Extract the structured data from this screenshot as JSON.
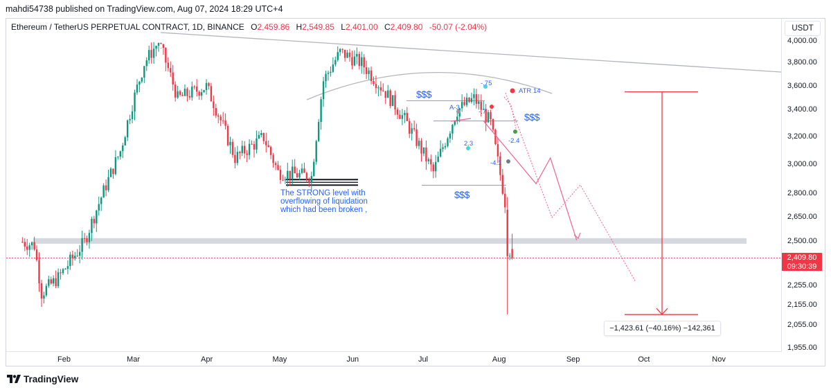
{
  "header": {
    "published_line": "mahdi54738 published on TradingView.com, Aug 07, 2024 18:29 UTC+4"
  },
  "legend": {
    "symbol": "Ethereum / TetherUS PERPETUAL CONTRACT, 1D, BINANCE",
    "open_label": "O",
    "open": "2,459.86",
    "high_label": "H",
    "high": "2,549.85",
    "low_label": "L",
    "low": "2,401.00",
    "close_label": "C",
    "close": "2,409.80",
    "change": "-50.07 (-2.04%)"
  },
  "currency_button": "USDT",
  "price_axis": [
    "4,000.00",
    "3,800.00",
    "3,600.00",
    "3,400.00",
    "3,200.00",
    "3,000.00",
    "2,800.00",
    "2,650.00",
    "2,500.00",
    "2,255.00",
    "2,155.00",
    "2,055.00",
    "1,955.00"
  ],
  "time_axis": [
    "Feb",
    "Mar",
    "Apr",
    "May",
    "Jun",
    "Jul",
    "Aug",
    "Sep",
    "Oct",
    "Nov"
  ],
  "current_price": {
    "price": "2,409.80",
    "countdown": "09:30:39"
  },
  "measurement": "−1,423.61 (−40.16%) −142,361",
  "annotations": {
    "strong_level_note": [
      "The STRONG level with",
      "overflowing of liquidation",
      "which had been broken ,"
    ],
    "dollar_signs": [
      "$$$",
      "$$$",
      "$$$"
    ],
    "atr_label": "ATR 14",
    "tags": [
      "-.75",
      "A-3",
      "-.7",
      "2.3",
      "-2.4",
      "-4.1"
    ]
  },
  "footer": {
    "brand": "TradingView"
  },
  "colors": {
    "up": "#089981",
    "down": "#f23645",
    "accent": "#2962ff",
    "pink": "#f06292",
    "trendline": "#b2b5be"
  },
  "chart_data": {
    "type": "candlestick",
    "title": "Ethereum / TetherUS PERPETUAL CONTRACT, 1D, BINANCE",
    "xlabel": "",
    "ylabel": "",
    "ylim": [
      1955,
      4100
    ],
    "x_range": [
      "2024-01-15",
      "2024-11-20"
    ],
    "grid": false,
    "keypoints": [
      {
        "date": "2024-01-15",
        "close": 2500
      },
      {
        "date": "2024-01-20",
        "close": 2480
      },
      {
        "date": "2024-01-23",
        "close": 2220
      },
      {
        "date": "2024-01-30",
        "close": 2300
      },
      {
        "date": "2024-02-10",
        "close": 2500
      },
      {
        "date": "2024-02-25",
        "close": 3100
      },
      {
        "date": "2024-03-06",
        "close": 3800
      },
      {
        "date": "2024-03-12",
        "close": 4000
      },
      {
        "date": "2024-03-20",
        "close": 3500
      },
      {
        "date": "2024-04-01",
        "close": 3600
      },
      {
        "date": "2024-04-13",
        "close": 3050
      },
      {
        "date": "2024-04-25",
        "close": 3200
      },
      {
        "date": "2024-05-01",
        "close": 2950
      },
      {
        "date": "2024-05-15",
        "close": 2920
      },
      {
        "date": "2024-05-20",
        "close": 3650
      },
      {
        "date": "2024-05-27",
        "close": 3900
      },
      {
        "date": "2024-06-05",
        "close": 3800
      },
      {
        "date": "2024-06-15",
        "close": 3550
      },
      {
        "date": "2024-06-24",
        "close": 3300
      },
      {
        "date": "2024-07-05",
        "close": 2950
      },
      {
        "date": "2024-07-15",
        "close": 3400
      },
      {
        "date": "2024-07-22",
        "close": 3500
      },
      {
        "date": "2024-07-29",
        "close": 3300
      },
      {
        "date": "2024-08-04",
        "close": 2750
      },
      {
        "date": "2024-08-05",
        "close": 2500
      },
      {
        "date": "2024-08-07",
        "close": 2409.8
      }
    ],
    "last_candle": {
      "date": "2024-08-07",
      "open": 2459.86,
      "high": 2549.85,
      "low": 2401.0,
      "close": 2409.8
    },
    "levels": {
      "gray_zone": 2505,
      "strong_level": 2880,
      "liquidity_lines": [
        3480,
        3320,
        2860
      ]
    },
    "projection_path": [
      {
        "date": "2024-07-26",
        "price": 3320
      },
      {
        "date": "2024-08-17",
        "price": 2870
      },
      {
        "date": "2024-08-23",
        "price": 3050
      },
      {
        "date": "2024-09-03",
        "price": 2510
      }
    ],
    "measure_range": {
      "from": 3555,
      "to": 2110,
      "change": "−1,423.61 (−40.16%)"
    }
  }
}
